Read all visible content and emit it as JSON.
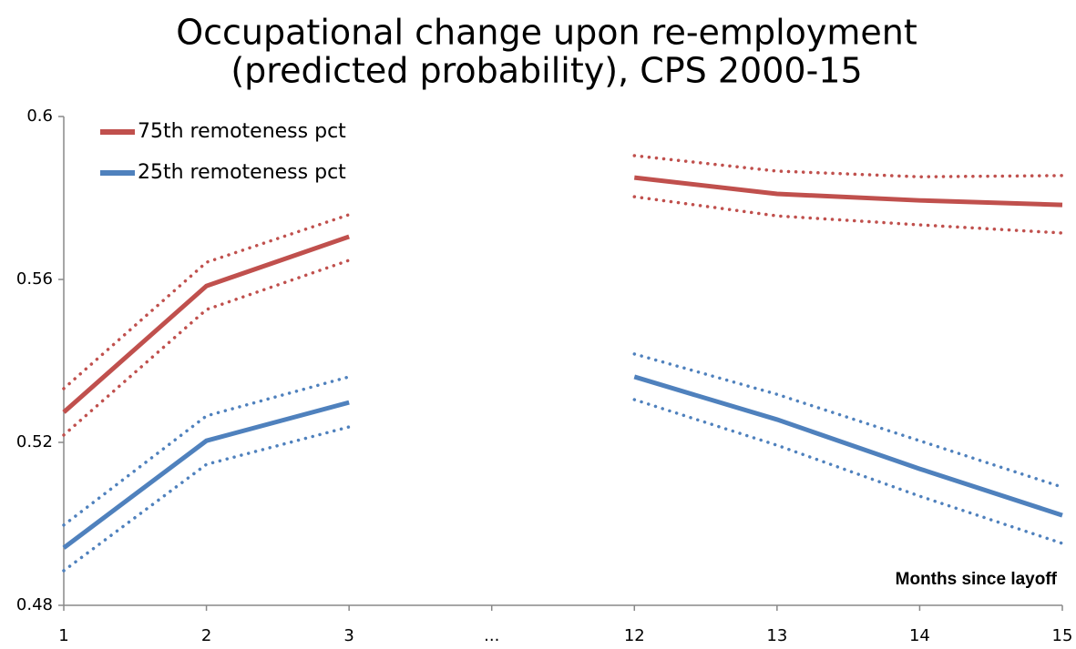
{
  "chart_data": {
    "type": "line",
    "title": [
      "Occupational change upon re-employment",
      "(predicted probability), CPS 2000-15"
    ],
    "x_label": "Months since layoff",
    "categories": [
      "1",
      "2",
      "3",
      "...",
      "12",
      "13",
      "14",
      "15"
    ],
    "ylim": [
      0.48,
      0.6
    ],
    "yticks": [
      0.48,
      0.52,
      0.56,
      0.6
    ],
    "legend": "top-left",
    "series": [
      {
        "name": "75th remoteness pct",
        "color": "#c0504d",
        "values": [
          0.5274,
          0.5584,
          0.5705,
          null,
          0.585,
          0.581,
          0.5794,
          0.5783
        ],
        "upper": [
          0.5332,
          0.5642,
          0.5759,
          null,
          0.5904,
          0.5866,
          0.5852,
          0.5855
        ],
        "lower": [
          0.5218,
          0.5526,
          0.5647,
          null,
          0.5803,
          0.5756,
          0.5734,
          0.5714
        ]
      },
      {
        "name": "25th remoteness pct",
        "color": "#4f81bd",
        "values": [
          0.4941,
          0.5204,
          0.5298,
          null,
          0.5361,
          0.5256,
          0.5135,
          0.5021
        ],
        "upper": [
          0.4997,
          0.5265,
          0.5361,
          null,
          0.5417,
          0.5318,
          0.5204,
          0.509
        ],
        "lower": [
          0.4885,
          0.5146,
          0.5238,
          null,
          0.5305,
          0.5193,
          0.5068,
          0.4952
        ]
      }
    ]
  }
}
